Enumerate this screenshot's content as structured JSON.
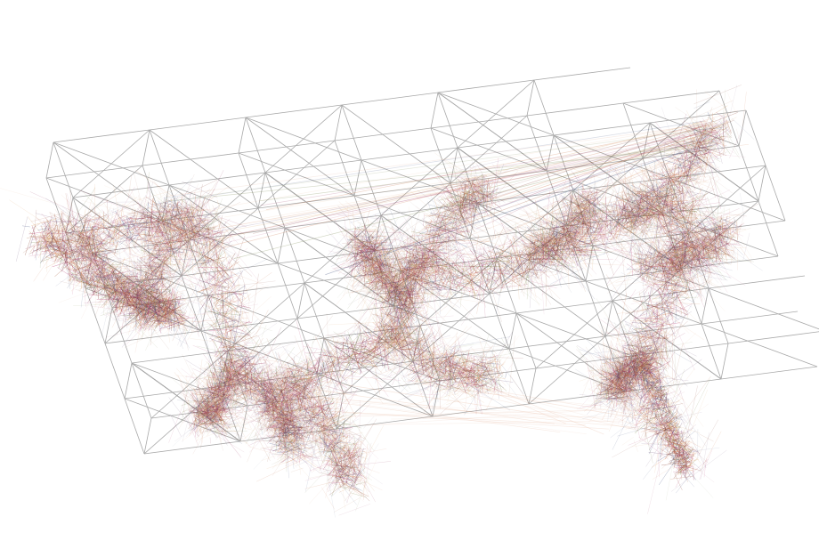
{
  "artwork": {
    "description_visible_text": "",
    "colors": {
      "background": "#ffffff",
      "lattice": "#9a9a9a",
      "strand_palette": [
        "#7a2a1a",
        "#a0522d",
        "#c8693a",
        "#8b1a4a",
        "#b0306a",
        "#5a3a6a",
        "#3a4a7a",
        "#d89a5a",
        "#6a7a3a",
        "#e0a070"
      ],
      "long_lines": "#d9906a"
    }
  }
}
